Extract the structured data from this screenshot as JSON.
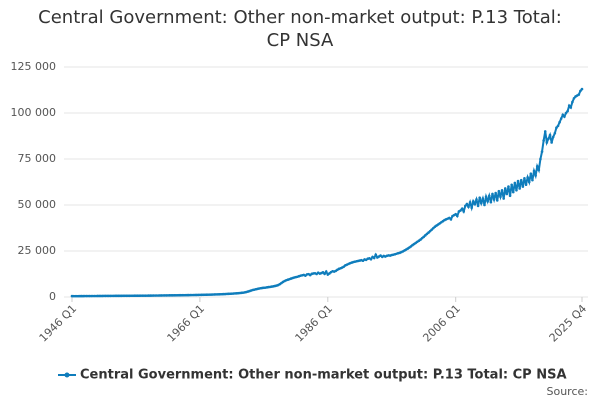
{
  "chart_data": {
    "type": "line",
    "title": [
      "Central Government: Other non-market output: P.13 Total:",
      "CP NSA"
    ],
    "source": "Source:",
    "categories": [
      "1946 Q1",
      null,
      null,
      null,
      null,
      null,
      null,
      null,
      null,
      null,
      null,
      null,
      null,
      null,
      null,
      null,
      null,
      null,
      null,
      null,
      null,
      null,
      null,
      null,
      null,
      null,
      null,
      null,
      null,
      null,
      null,
      null,
      null,
      null,
      null,
      null,
      null,
      null,
      null,
      null,
      null,
      null,
      null,
      null,
      null,
      null,
      null,
      null,
      null,
      null,
      null,
      null,
      null,
      null,
      null,
      null,
      null,
      null,
      null,
      null,
      null,
      null,
      null,
      null,
      null,
      null,
      null,
      null,
      null,
      null,
      null,
      null,
      null,
      null,
      null,
      null,
      null,
      null,
      null,
      null,
      "1966 Q1",
      null,
      null,
      null,
      null,
      null,
      null,
      null,
      null,
      null,
      null,
      null,
      null,
      null,
      null,
      null,
      null,
      null,
      null,
      null,
      null,
      null,
      null,
      null,
      null,
      null,
      null,
      null,
      null,
      null,
      null,
      null,
      null,
      null,
      null,
      null,
      null,
      null,
      null,
      null,
      null,
      null,
      null,
      null,
      null,
      null,
      null,
      null,
      null,
      null,
      null,
      null,
      null,
      null,
      null,
      null,
      null,
      null,
      null,
      null,
      null,
      null,
      null,
      null,
      null,
      null,
      null,
      null,
      null,
      null,
      null,
      null,
      null,
      null,
      null,
      null,
      null,
      null,
      null,
      null,
      "1986 Q1",
      null,
      null,
      null,
      null,
      null,
      null,
      null,
      null,
      null,
      null,
      null,
      null,
      null,
      null,
      null,
      null,
      null,
      null,
      null,
      null,
      null,
      null,
      null,
      null,
      null,
      null,
      null,
      null,
      null,
      null,
      null,
      null,
      null,
      null,
      null,
      null,
      null,
      null,
      null,
      null,
      null,
      null,
      null,
      null,
      null,
      null,
      null,
      null,
      null,
      null,
      null,
      null,
      null,
      null,
      null,
      null,
      null,
      null,
      null,
      null,
      null,
      null,
      null,
      null,
      null,
      null,
      null,
      null,
      null,
      null,
      null,
      null,
      null,
      null,
      null,
      null,
      null,
      null,
      null,
      "2006 Q1",
      null,
      null,
      null,
      null,
      null,
      null,
      null,
      null,
      null,
      null,
      null,
      null,
      null,
      null,
      null,
      null,
      null,
      null,
      null,
      null,
      null,
      null,
      null,
      null,
      null,
      null,
      null,
      null,
      null,
      null,
      null,
      null,
      null,
      null,
      null,
      null,
      null,
      null,
      null,
      null,
      null,
      null,
      null,
      null,
      null,
      null,
      null,
      null,
      null,
      null,
      null,
      null,
      null,
      null,
      null,
      null,
      null,
      null,
      null,
      null,
      null,
      null,
      null,
      null,
      null,
      null,
      null,
      null,
      null,
      null,
      null,
      null,
      null,
      null,
      null,
      null,
      null,
      null,
      "2025 Q4"
    ],
    "series": [
      {
        "name": "Central Government: Other non-market output: P.13 Total: CP NSA",
        "color": "#0f7dbc",
        "values": [
          500,
          480,
          470,
          480,
          480,
          490,
          500,
          500,
          510,
          510,
          520,
          520,
          530,
          540,
          540,
          550,
          560,
          560,
          570,
          570,
          580,
          590,
          590,
          600,
          600,
          610,
          610,
          620,
          620,
          630,
          640,
          640,
          650,
          650,
          660,
          660,
          670,
          680,
          680,
          690,
          700,
          710,
          710,
          720,
          730,
          740,
          740,
          750,
          760,
          770,
          780,
          790,
          800,
          810,
          820,
          830,
          840,
          850,
          860,
          870,
          880,
          890,
          900,
          910,
          920,
          940,
          950,
          960,
          980,
          990,
          1000,
          1020,
          1030,
          1050,
          1060,
          1080,
          1090,
          1110,
          1120,
          1140,
          1160,
          1180,
          1200,
          1220,
          1240,
          1260,
          1290,
          1310,
          1340,
          1370,
          1400,
          1430,
          1460,
          1500,
          1540,
          1580,
          1620,
          1670,
          1720,
          1770,
          1820,
          1880,
          1940,
          2000,
          2080,
          2160,
          2250,
          2350,
          2500,
          2700,
          2950,
          3200,
          3500,
          3800,
          4000,
          4200,
          4400,
          4600,
          4750,
          4900,
          5000,
          5100,
          5250,
          5400,
          5500,
          5650,
          5800,
          6000,
          6200,
          6500,
          7000,
          7600,
          8200,
          8700,
          9100,
          9400,
          9700,
          10000,
          10300,
          10600,
          10800,
          11000,
          11300,
          11600,
          11800,
          12000,
          11600,
          12300,
          12400,
          11900,
          12600,
          12800,
          12900,
          12500,
          13200,
          12700,
          13000,
          13400,
          12600,
          13800,
          12200,
          12800,
          13500,
          14000,
          13800,
          14200,
          14800,
          15300,
          15600,
          16000,
          16500,
          17200,
          17600,
          18000,
          18400,
          18700,
          19000,
          19200,
          19400,
          19600,
          19800,
          20000,
          19700,
          20400,
          20200,
          20800,
          21000,
          20500,
          21800,
          21200,
          23000,
          21500,
          22000,
          22500,
          21800,
          22300,
          22000,
          22400,
          22600,
          22500,
          22800,
          23000,
          23200,
          23500,
          23800,
          24000,
          24400,
          24800,
          25300,
          25800,
          26300,
          26900,
          27500,
          28200,
          28800,
          29400,
          30000,
          30600,
          31200,
          32000,
          32700,
          33500,
          34300,
          35000,
          35800,
          36600,
          37400,
          38200,
          38800,
          39400,
          40000,
          40600,
          41200,
          41800,
          42200,
          42600,
          43000,
          42200,
          44000,
          44500,
          45000,
          44000,
          46500,
          47000,
          48000,
          46500,
          49500,
          50500,
          49000,
          51500,
          48500,
          52000,
          50500,
          53000,
          49500,
          54000,
          51000,
          53500,
          50000,
          54500,
          52000,
          55000,
          51500,
          56000,
          53000,
          56500,
          52500,
          57500,
          54500,
          58000,
          53500,
          59000,
          56000,
          60000,
          55000,
          61000,
          57000,
          62000,
          58000,
          63000,
          59000,
          63500,
          60000,
          64500,
          61000,
          65000,
          62500,
          67000,
          63500,
          68500,
          66000,
          71000,
          69000,
          75000,
          79000,
          85000,
          90000,
          84000,
          86000,
          88000,
          84000,
          87000,
          89000,
          92000,
          93000,
          95000,
          97000,
          99000,
          98000,
          100000,
          101000,
          104000,
          103000,
          106000,
          108000,
          109000,
          109500,
          110000,
          112000,
          113000
        ]
      }
    ],
    "ylim": [
      0,
      125000
    ],
    "yticks": [
      0,
      {
        "value": 25000,
        "label": "25 000"
      },
      {
        "value": 50000,
        "label": "50 000"
      },
      {
        "value": 75000,
        "label": "75 000"
      },
      {
        "value": 100000,
        "label": "100 000"
      },
      {
        "value": 125000,
        "label": "125 000"
      }
    ],
    "grid": true
  }
}
